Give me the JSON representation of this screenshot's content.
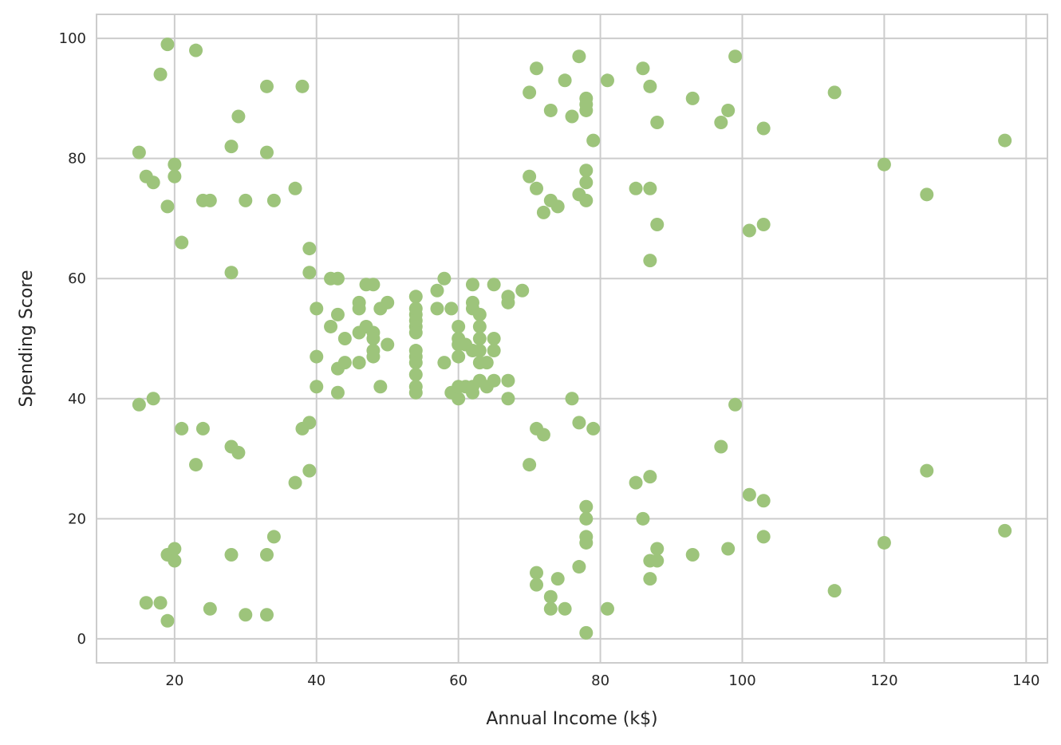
{
  "chart_data": {
    "type": "scatter",
    "title": "",
    "xlabel": "Annual Income (k$)",
    "ylabel": "Spending Score",
    "xlim": [
      9,
      143
    ],
    "ylim": [
      -4,
      104
    ],
    "xticks": [
      20,
      40,
      60,
      80,
      100,
      120,
      140
    ],
    "yticks": [
      0,
      20,
      40,
      60,
      80,
      100
    ],
    "grid": true,
    "marker_color": "#9dc47b",
    "points": [
      [
        15,
        39
      ],
      [
        15,
        81
      ],
      [
        16,
        6
      ],
      [
        16,
        77
      ],
      [
        17,
        40
      ],
      [
        17,
        76
      ],
      [
        18,
        6
      ],
      [
        18,
        94
      ],
      [
        19,
        3
      ],
      [
        19,
        72
      ],
      [
        19,
        14
      ],
      [
        19,
        99
      ],
      [
        20,
        15
      ],
      [
        20,
        77
      ],
      [
        20,
        13
      ],
      [
        20,
        79
      ],
      [
        21,
        35
      ],
      [
        21,
        66
      ],
      [
        23,
        29
      ],
      [
        23,
        98
      ],
      [
        24,
        35
      ],
      [
        24,
        73
      ],
      [
        25,
        5
      ],
      [
        25,
        73
      ],
      [
        28,
        14
      ],
      [
        28,
        82
      ],
      [
        28,
        32
      ],
      [
        28,
        61
      ],
      [
        29,
        31
      ],
      [
        29,
        87
      ],
      [
        30,
        4
      ],
      [
        30,
        73
      ],
      [
        33,
        4
      ],
      [
        33,
        92
      ],
      [
        33,
        14
      ],
      [
        33,
        81
      ],
      [
        34,
        17
      ],
      [
        34,
        73
      ],
      [
        37,
        26
      ],
      [
        37,
        75
      ],
      [
        38,
        35
      ],
      [
        38,
        92
      ],
      [
        39,
        36
      ],
      [
        39,
        61
      ],
      [
        39,
        28
      ],
      [
        39,
        65
      ],
      [
        40,
        55
      ],
      [
        40,
        47
      ],
      [
        40,
        42
      ],
      [
        42,
        52
      ],
      [
        42,
        60
      ],
      [
        43,
        54
      ],
      [
        43,
        60
      ],
      [
        43,
        45
      ],
      [
        43,
        41
      ],
      [
        44,
        50
      ],
      [
        44,
        46
      ],
      [
        46,
        51
      ],
      [
        46,
        46
      ],
      [
        46,
        56
      ],
      [
        46,
        55
      ],
      [
        47,
        52
      ],
      [
        47,
        59
      ],
      [
        48,
        51
      ],
      [
        48,
        59
      ],
      [
        48,
        50
      ],
      [
        48,
        48
      ],
      [
        48,
        47
      ],
      [
        49,
        55
      ],
      [
        49,
        42
      ],
      [
        50,
        49
      ],
      [
        50,
        56
      ],
      [
        54,
        47
      ],
      [
        54,
        54
      ],
      [
        54,
        53
      ],
      [
        54,
        48
      ],
      [
        54,
        52
      ],
      [
        54,
        42
      ],
      [
        54,
        51
      ],
      [
        54,
        55
      ],
      [
        54,
        41
      ],
      [
        54,
        44
      ],
      [
        54,
        57
      ],
      [
        54,
        46
      ],
      [
        57,
        58
      ],
      [
        57,
        55
      ],
      [
        58,
        60
      ],
      [
        58,
        46
      ],
      [
        59,
        55
      ],
      [
        59,
        41
      ],
      [
        60,
        49
      ],
      [
        60,
        40
      ],
      [
        60,
        42
      ],
      [
        60,
        52
      ],
      [
        60,
        47
      ],
      [
        60,
        50
      ],
      [
        61,
        42
      ],
      [
        61,
        49
      ],
      [
        62,
        41
      ],
      [
        62,
        48
      ],
      [
        62,
        59
      ],
      [
        62,
        55
      ],
      [
        62,
        56
      ],
      [
        62,
        42
      ],
      [
        63,
        50
      ],
      [
        63,
        46
      ],
      [
        63,
        43
      ],
      [
        63,
        48
      ],
      [
        63,
        52
      ],
      [
        63,
        54
      ],
      [
        64,
        42
      ],
      [
        64,
        46
      ],
      [
        65,
        48
      ],
      [
        65,
        50
      ],
      [
        65,
        43
      ],
      [
        65,
        59
      ],
      [
        67,
        43
      ],
      [
        67,
        57
      ],
      [
        67,
        56
      ],
      [
        67,
        40
      ],
      [
        69,
        58
      ],
      [
        70,
        91
      ],
      [
        70,
        29
      ],
      [
        70,
        77
      ],
      [
        71,
        35
      ],
      [
        71,
        95
      ],
      [
        71,
        11
      ],
      [
        71,
        75
      ],
      [
        71,
        9
      ],
      [
        72,
        34
      ],
      [
        72,
        71
      ],
      [
        73,
        5
      ],
      [
        73,
        88
      ],
      [
        73,
        7
      ],
      [
        73,
        73
      ],
      [
        74,
        10
      ],
      [
        74,
        72
      ],
      [
        75,
        5
      ],
      [
        75,
        93
      ],
      [
        76,
        40
      ],
      [
        76,
        87
      ],
      [
        77,
        12
      ],
      [
        77,
        97
      ],
      [
        77,
        36
      ],
      [
        77,
        74
      ],
      [
        78,
        22
      ],
      [
        78,
        90
      ],
      [
        78,
        17
      ],
      [
        78,
        88
      ],
      [
        78,
        20
      ],
      [
        78,
        76
      ],
      [
        78,
        16
      ],
      [
        78,
        89
      ],
      [
        78,
        1
      ],
      [
        78,
        78
      ],
      [
        78,
        73
      ],
      [
        79,
        35
      ],
      [
        79,
        83
      ],
      [
        81,
        5
      ],
      [
        81,
        93
      ],
      [
        85,
        26
      ],
      [
        85,
        75
      ],
      [
        86,
        20
      ],
      [
        86,
        95
      ],
      [
        87,
        27
      ],
      [
        87,
        63
      ],
      [
        87,
        13
      ],
      [
        87,
        75
      ],
      [
        87,
        10
      ],
      [
        87,
        92
      ],
      [
        88,
        13
      ],
      [
        88,
        86
      ],
      [
        88,
        15
      ],
      [
        88,
        69
      ],
      [
        93,
        14
      ],
      [
        93,
        90
      ],
      [
        97,
        32
      ],
      [
        97,
        86
      ],
      [
        98,
        15
      ],
      [
        98,
        88
      ],
      [
        99,
        39
      ],
      [
        99,
        97
      ],
      [
        101,
        24
      ],
      [
        101,
        68
      ],
      [
        103,
        17
      ],
      [
        103,
        85
      ],
      [
        103,
        23
      ],
      [
        103,
        69
      ],
      [
        113,
        8
      ],
      [
        113,
        91
      ],
      [
        120,
        16
      ],
      [
        120,
        79
      ],
      [
        126,
        28
      ],
      [
        126,
        74
      ],
      [
        137,
        18
      ],
      [
        137,
        83
      ]
    ]
  }
}
